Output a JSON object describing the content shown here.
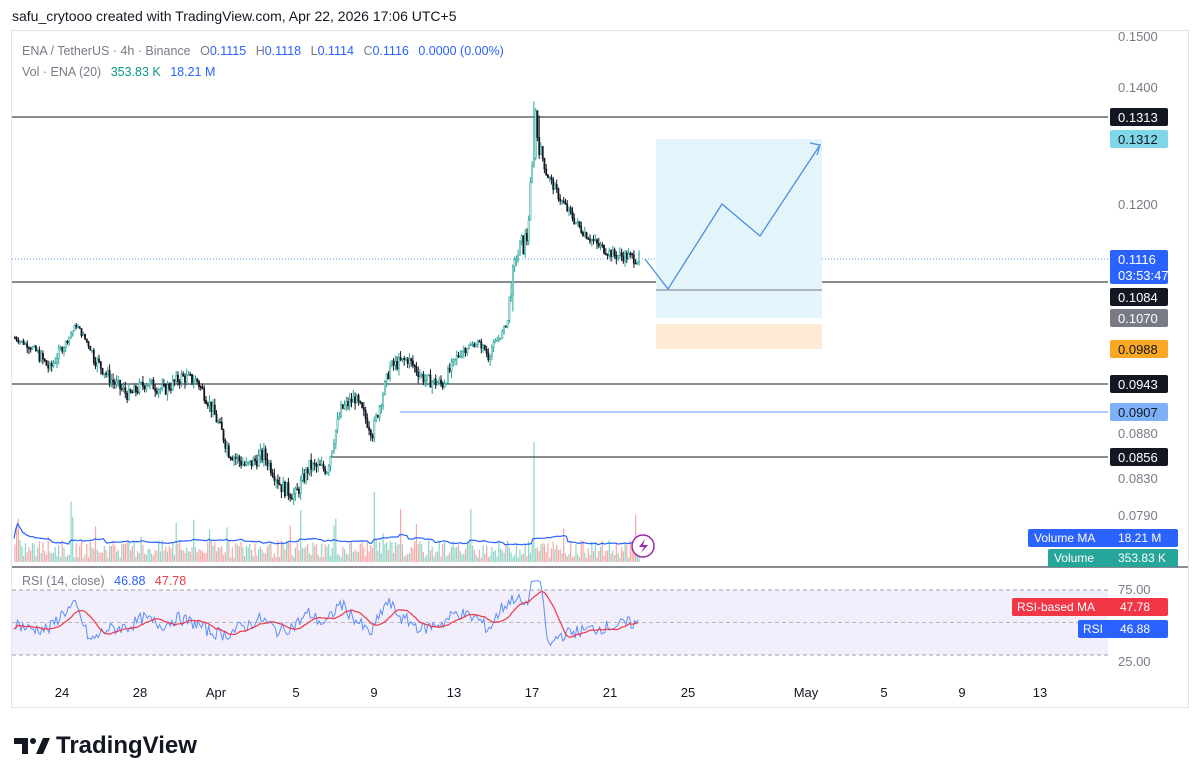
{
  "header": {
    "credit": "safu_crytooo created with TradingView.com, Apr 22, 2026 17:06 UTC+5"
  },
  "legend": {
    "symbol": "ENA / TetherUS · 4h · Binance",
    "o_label": "O",
    "o": "0.1115",
    "h_label": "H",
    "h": "0.1118",
    "l_label": "L",
    "l": "0.1114",
    "c_label": "C",
    "c": "0.1116",
    "change": "0.0000 (0.00%)",
    "vol_label": "Vol · ENA (20)",
    "vol_value": "353.83 K",
    "vol_ma": "18.21 M",
    "rsi_label": "RSI (14, close)",
    "rsi_value": "46.88",
    "rsi_ma": "47.78"
  },
  "logo": {
    "text": "TradingView"
  },
  "colors": {
    "up": "#26a69a",
    "down": "#ef5350",
    "vol_up": "#8fd6c8",
    "vol_down": "#f7a9a7",
    "ma": "#2962ff",
    "rsi": "#5b8ff9",
    "rsi_ma": "#f23645",
    "target_fill": "#e3f4fb",
    "stop_fill": "#fdebd6",
    "path": "#4a90e2"
  },
  "chart_data": {
    "type": "candlestick",
    "symbol": "ENA / TetherUS",
    "timeframe": "4h",
    "price_axis_ticks": [
      "0.1500",
      "0.1400",
      "0.1200",
      "0.0880",
      "0.0830",
      "0.0790"
    ],
    "price_labels": [
      {
        "value": "0.1313",
        "style": "black"
      },
      {
        "value": "0.1312",
        "style": "cyan"
      },
      {
        "value": "0.1116",
        "style": "blue"
      },
      {
        "value": "03:53:47",
        "style": "blue"
      },
      {
        "value": "0.1084",
        "style": "black"
      },
      {
        "value": "0.1070",
        "style": "gray"
      },
      {
        "value": "0.0988",
        "style": "orange"
      },
      {
        "value": "0.0943",
        "style": "black"
      },
      {
        "value": "0.0907",
        "style": "lightblue"
      },
      {
        "value": "0.0856",
        "style": "black"
      }
    ],
    "volume_labels": [
      {
        "name": "Volume MA",
        "value": "18.21 M"
      },
      {
        "name": "Volume",
        "value": "353.83 K"
      }
    ],
    "rsi_axis_ticks": [
      "75.00",
      "25.00"
    ],
    "rsi_labels": [
      {
        "name": "RSI-based MA",
        "value": "47.78"
      },
      {
        "name": "RSI",
        "value": "46.88"
      }
    ],
    "x_ticks": [
      "24",
      "28",
      "Apr",
      "5",
      "9",
      "13",
      "17",
      "21",
      "25",
      "May",
      "5",
      "9",
      "13"
    ],
    "horizontal_levels": [
      0.1313,
      0.1084,
      0.0943,
      0.0907,
      0.0856
    ],
    "position": {
      "entry": 0.1084,
      "target": 0.1312,
      "stop": 0.0988
    },
    "last_price": 0.1116
  }
}
